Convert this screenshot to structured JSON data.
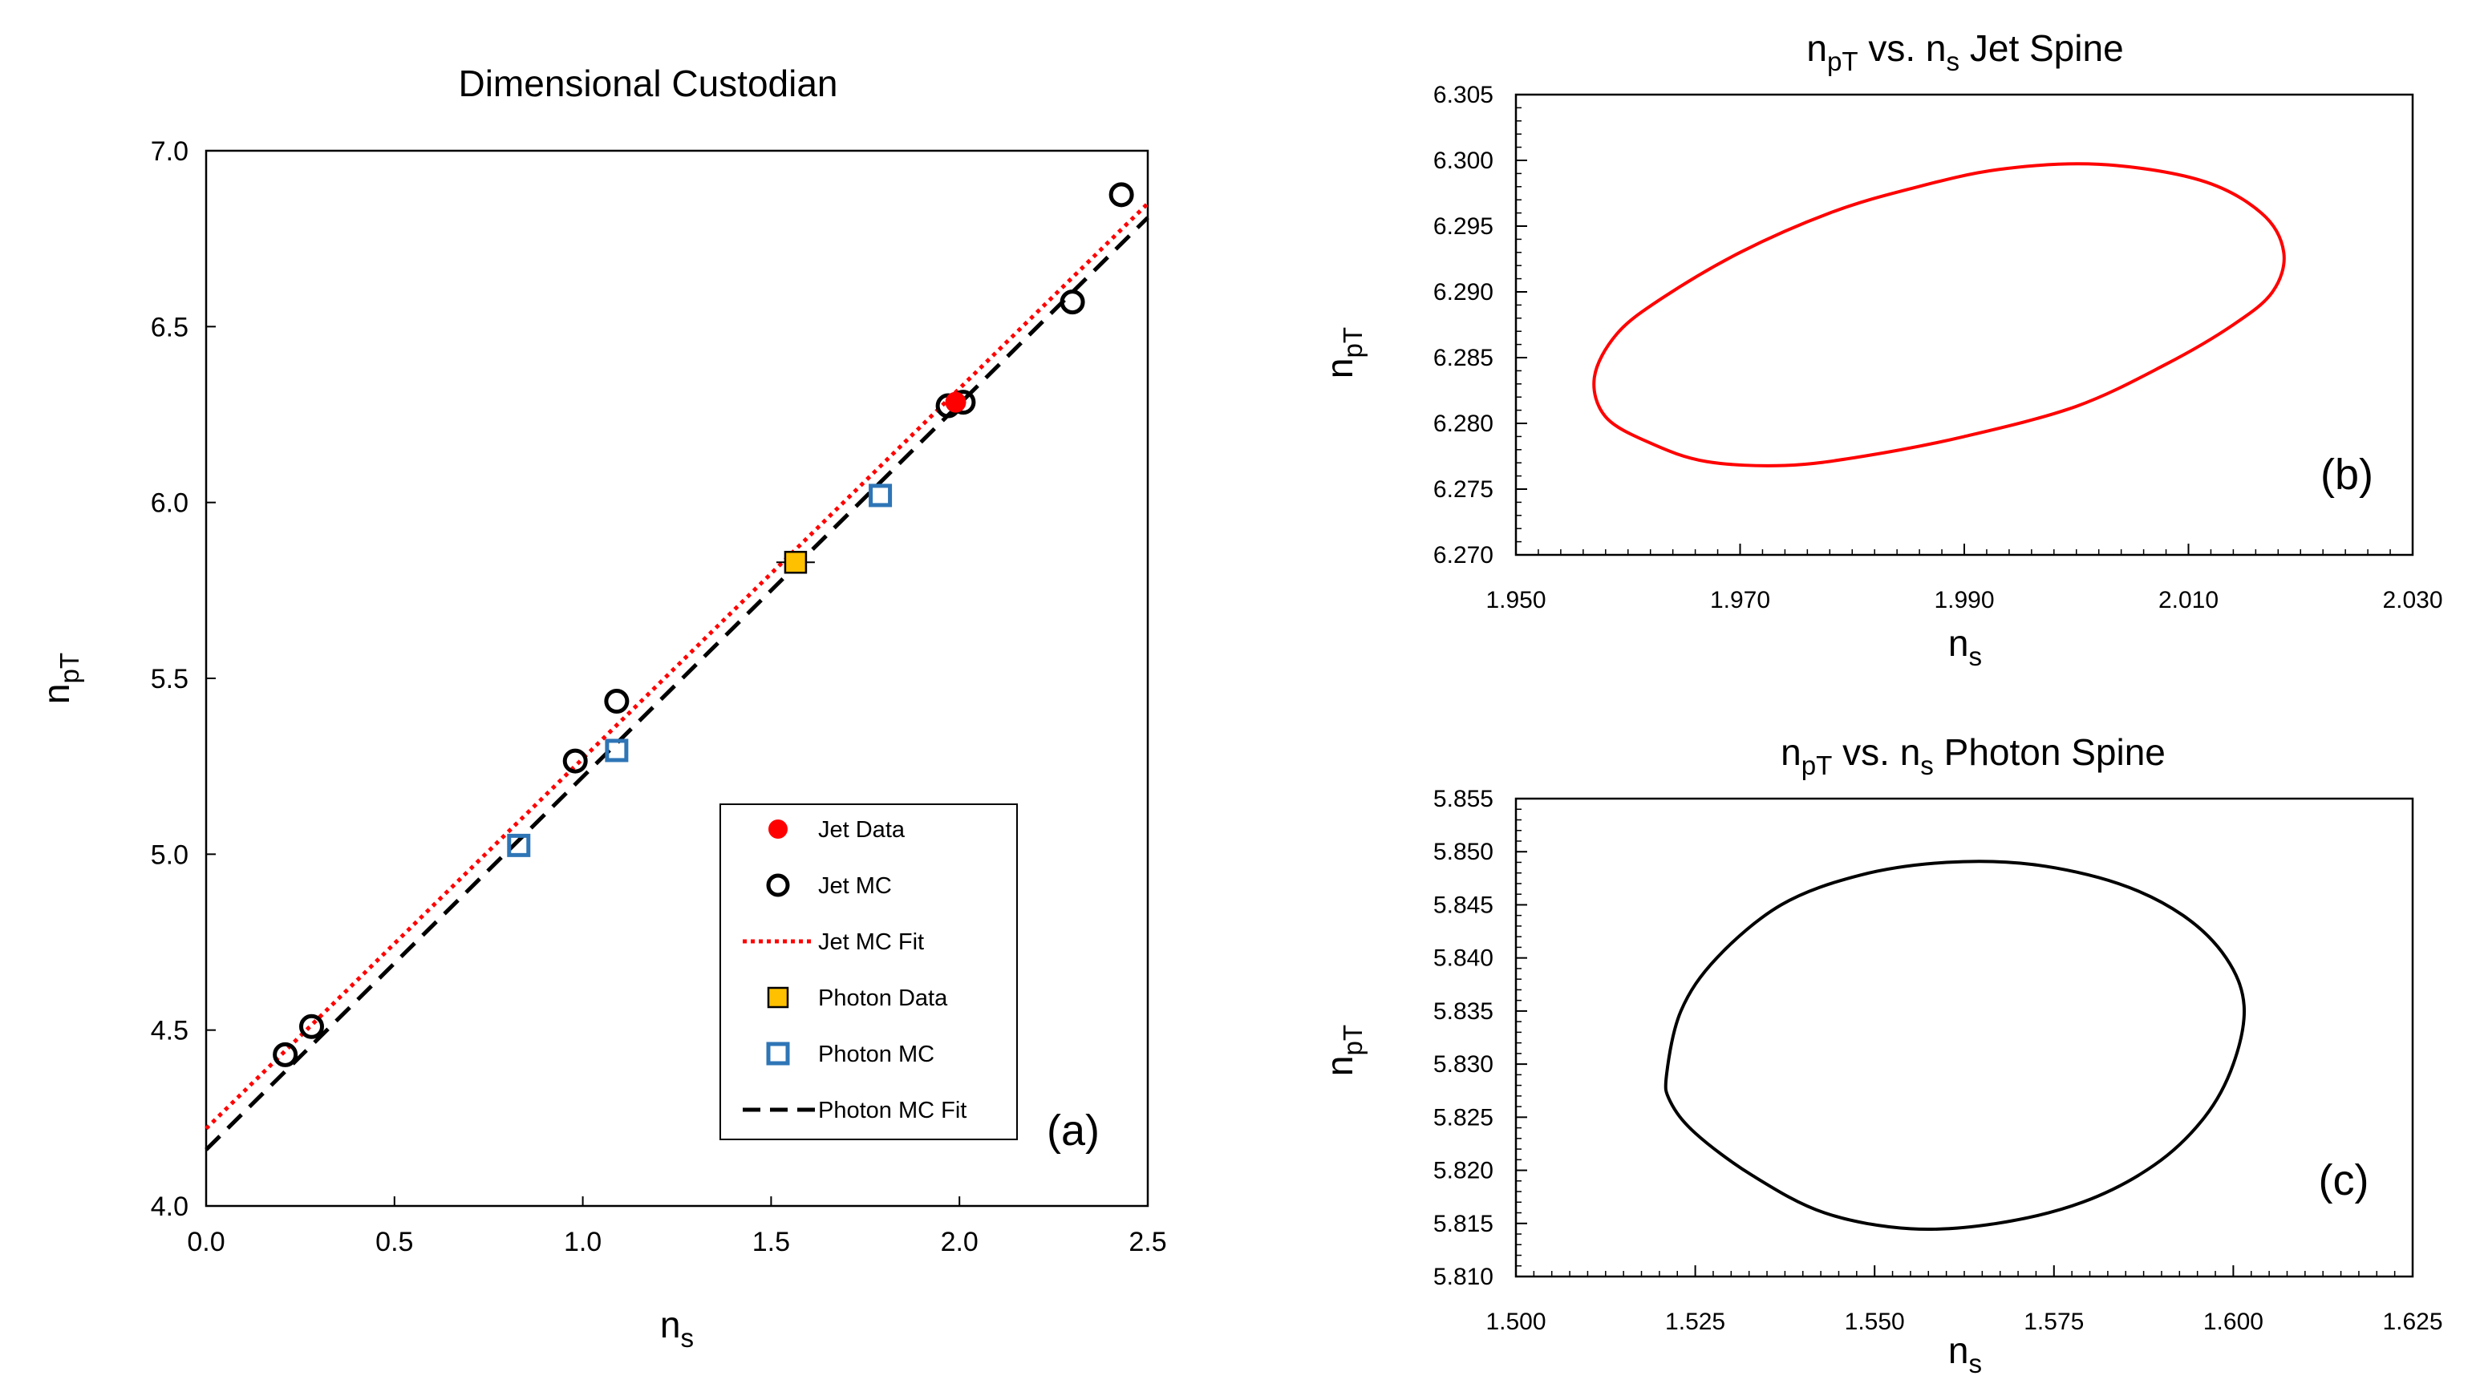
{
  "chart_data": [
    {
      "id": "a",
      "type": "scatter",
      "title": "Dimensional Custodian",
      "xlabel": {
        "main": "n",
        "sub": "s"
      },
      "ylabel": {
        "main": "n",
        "sub": "pT"
      },
      "xlim": [
        0.0,
        2.5
      ],
      "ylim": [
        4.0,
        7.0
      ],
      "xticks": [
        "0.0",
        "0.5",
        "1.0",
        "1.5",
        "2.0",
        "2.5"
      ],
      "yticks": [
        "4.0",
        "4.5",
        "5.0",
        "5.5",
        "6.0",
        "6.5",
        "7.0"
      ],
      "panel_tag": "(a)",
      "series": [
        {
          "name": "Jet Data",
          "kind": "points",
          "marker": "filled-circle",
          "color": "#ff0000",
          "points": [
            [
              1.99,
              6.285
            ]
          ]
        },
        {
          "name": "Jet MC",
          "kind": "points",
          "marker": "open-circle",
          "color": "#000000",
          "points": [
            [
              0.21,
              4.43
            ],
            [
              0.28,
              4.51
            ],
            [
              0.98,
              5.265
            ],
            [
              1.09,
              5.435
            ],
            [
              1.97,
              6.275
            ],
            [
              2.01,
              6.285
            ],
            [
              2.3,
              6.57
            ],
            [
              2.43,
              6.875
            ]
          ]
        },
        {
          "name": "Jet MC Fit",
          "kind": "line",
          "style": "dotted",
          "color": "#ff0000",
          "points": [
            [
              0.0,
              4.22
            ],
            [
              2.5,
              6.85
            ]
          ]
        },
        {
          "name": "Photon Data",
          "kind": "points",
          "marker": "filled-square",
          "color": "#ffc000",
          "points": [
            [
              1.565,
              5.83
            ]
          ]
        },
        {
          "name": "Photon MC",
          "kind": "points",
          "marker": "open-square",
          "color": "#2e75b6",
          "points": [
            [
              0.83,
              5.025
            ],
            [
              1.09,
              5.295
            ],
            [
              1.79,
              6.02
            ]
          ]
        },
        {
          "name": "Photon MC Fit",
          "kind": "line",
          "style": "dashed",
          "color": "#000000",
          "points": [
            [
              0.0,
              4.16
            ],
            [
              2.5,
              6.81
            ]
          ]
        }
      ],
      "legend": {
        "placement": "lower-right",
        "entries": [
          "Jet Data",
          "Jet MC",
          "Jet MC Fit",
          "Photon Data",
          "Photon MC",
          "Photon MC Fit"
        ]
      }
    },
    {
      "id": "b",
      "type": "line",
      "title": {
        "pre": "n",
        "pre_sub": "pT",
        "mid": " vs. n",
        "mid_sub": "s",
        "post": " Jet Spine"
      },
      "xlabel": {
        "main": "n",
        "sub": "s"
      },
      "ylabel": {
        "main": "n",
        "sub": "pT"
      },
      "xlim": [
        1.95,
        2.03
      ],
      "ylim": [
        6.27,
        6.305
      ],
      "xticks": [
        "1.950",
        "1.970",
        "1.990",
        "2.010",
        "2.030"
      ],
      "yticks": [
        "6.270",
        "6.275",
        "6.280",
        "6.285",
        "6.290",
        "6.295",
        "6.300",
        "6.305"
      ],
      "panel_tag": "(b)",
      "series": [
        {
          "name": "Jet Spine contour",
          "color": "#ff0000",
          "points": [
            [
              1.957,
              6.2835
            ],
            [
              1.959,
              6.2868
            ],
            [
              1.963,
              6.2895
            ],
            [
              1.97,
              6.293
            ],
            [
              1.978,
              6.296
            ],
            [
              1.985,
              6.2978
            ],
            [
              1.993,
              6.2993
            ],
            [
              2.002,
              6.2997
            ],
            [
              2.011,
              6.2985
            ],
            [
              2.0165,
              6.296
            ],
            [
              2.0185,
              6.293
            ],
            [
              2.0175,
              6.29
            ],
            [
              2.014,
              6.2875
            ],
            [
              2.008,
              6.2845
            ],
            [
              2.0,
              6.2813
            ],
            [
              1.99,
              6.279
            ],
            [
              1.981,
              6.2775
            ],
            [
              1.974,
              6.2768
            ],
            [
              1.967,
              6.2771
            ],
            [
              1.962,
              6.2785
            ],
            [
              1.958,
              6.2805
            ],
            [
              1.957,
              6.2835
            ]
          ]
        }
      ]
    },
    {
      "id": "c",
      "type": "line",
      "title": {
        "pre": "n",
        "pre_sub": "pT",
        "mid": " vs. n",
        "mid_sub": "s",
        "post": " Photon Spine"
      },
      "xlabel": {
        "main": "n",
        "sub": "s"
      },
      "ylabel": {
        "main": "n",
        "sub": "pT"
      },
      "xlim": [
        1.5,
        1.625
      ],
      "ylim": [
        5.81,
        5.855
      ],
      "xticks": [
        "1.500",
        "1.525",
        "1.550",
        "1.575",
        "1.600",
        "1.625"
      ],
      "yticks": [
        "5.810",
        "5.815",
        "5.820",
        "5.825",
        "5.830",
        "5.835",
        "5.840",
        "5.845",
        "5.850",
        "5.855"
      ],
      "panel_tag": "(c)",
      "series": [
        {
          "name": "Photon Spine contour",
          "color": "#000000",
          "points": [
            [
              1.521,
              5.829
            ],
            [
              1.523,
              5.835
            ],
            [
              1.528,
              5.84
            ],
            [
              1.537,
              5.845
            ],
            [
              1.548,
              5.8478
            ],
            [
              1.56,
              5.849
            ],
            [
              1.572,
              5.8488
            ],
            [
              1.584,
              5.847
            ],
            [
              1.593,
              5.844
            ],
            [
              1.599,
              5.84
            ],
            [
              1.6015,
              5.8355
            ],
            [
              1.6,
              5.83
            ],
            [
              1.596,
              5.825
            ],
            [
              1.589,
              5.8205
            ],
            [
              1.579,
              5.817
            ],
            [
              1.567,
              5.815
            ],
            [
              1.555,
              5.8145
            ],
            [
              1.543,
              5.816
            ],
            [
              1.533,
              5.8195
            ],
            [
              1.525,
              5.8235
            ],
            [
              1.5215,
              5.8265
            ],
            [
              1.521,
              5.829
            ]
          ]
        }
      ]
    }
  ]
}
